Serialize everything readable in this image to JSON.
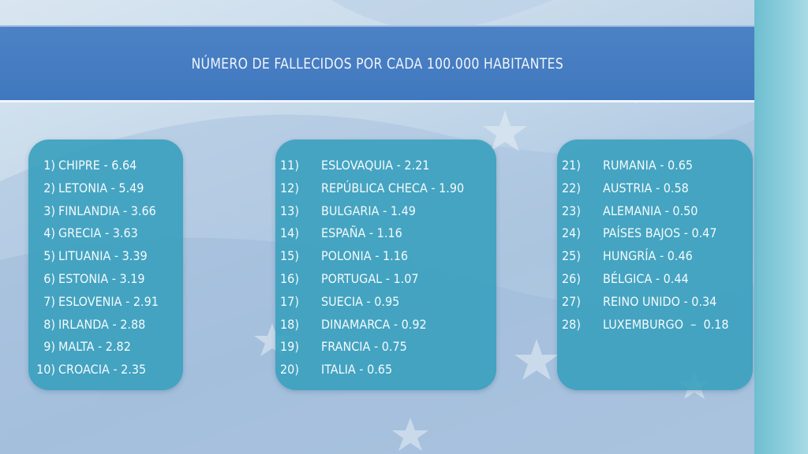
{
  "title": "NÚMERO DE FALLECIDOS POR CADA 100.000 HABITANTES",
  "colors": {
    "title_bar": "#4479c2",
    "panel": "#38a0be",
    "text": "#f4fafc",
    "background": "#c3d7e9",
    "right_strip": "#8fcfdd"
  },
  "columns": [
    {
      "items": [
        {
          "num": "1)",
          "text": "CHIPRE - 6.64"
        },
        {
          "num": "2)",
          "text": "LETONIA - 5.49"
        },
        {
          "num": "3)",
          "text": "FINLANDIA - 3.66"
        },
        {
          "num": "4)",
          "text": "GRECIA - 3.63"
        },
        {
          "num": "5)",
          "text": "LITUANIA - 3.39"
        },
        {
          "num": "6)",
          "text": "ESTONIA - 3.19"
        },
        {
          "num": "7)",
          "text": "ESLOVENIA - 2.91"
        },
        {
          "num": "8)",
          "text": "IRLANDA - 2.88"
        },
        {
          "num": "9)",
          "text": "MALTA - 2.82"
        },
        {
          "num": "10)",
          "text": "CROACIA - 2.35"
        }
      ]
    },
    {
      "items": [
        {
          "num": "11)",
          "text": "ESLOVAQUIA - 2.21"
        },
        {
          "num": "12)",
          "text": "REPÚBLICA CHECA - 1.90"
        },
        {
          "num": "13)",
          "text": "BULGARIA - 1.49"
        },
        {
          "num": "14)",
          "text": "ESPAÑA - 1.16"
        },
        {
          "num": "15)",
          "text": "POLONIA - 1.16"
        },
        {
          "num": "16)",
          "text": "PORTUGAL - 1.07"
        },
        {
          "num": "17)",
          "text": "SUECIA - 0.95"
        },
        {
          "num": "18)",
          "text": "DINAMARCA - 0.92"
        },
        {
          "num": "19)",
          "text": "FRANCIA - 0.75"
        },
        {
          "num": "20)",
          "text": "ITALIA - 0.65"
        }
      ]
    },
    {
      "items": [
        {
          "num": "21)",
          "text": "RUMANIA - 0.65"
        },
        {
          "num": "22)",
          "text": "AUSTRIA - 0.58"
        },
        {
          "num": "23)",
          "text": "ALEMANIA - 0.50"
        },
        {
          "num": "24)",
          "text": "PAÍSES BAJOS - 0.47"
        },
        {
          "num": "25)",
          "text": "HUNGRÍA - 0.46"
        },
        {
          "num": "26)",
          "text": "BÉLGICA - 0.44"
        },
        {
          "num": "27)",
          "text": "REINO UNIDO - 0.34"
        },
        {
          "num": "28)",
          "text": "LUXEMBURGO  –  0.18"
        }
      ]
    }
  ]
}
